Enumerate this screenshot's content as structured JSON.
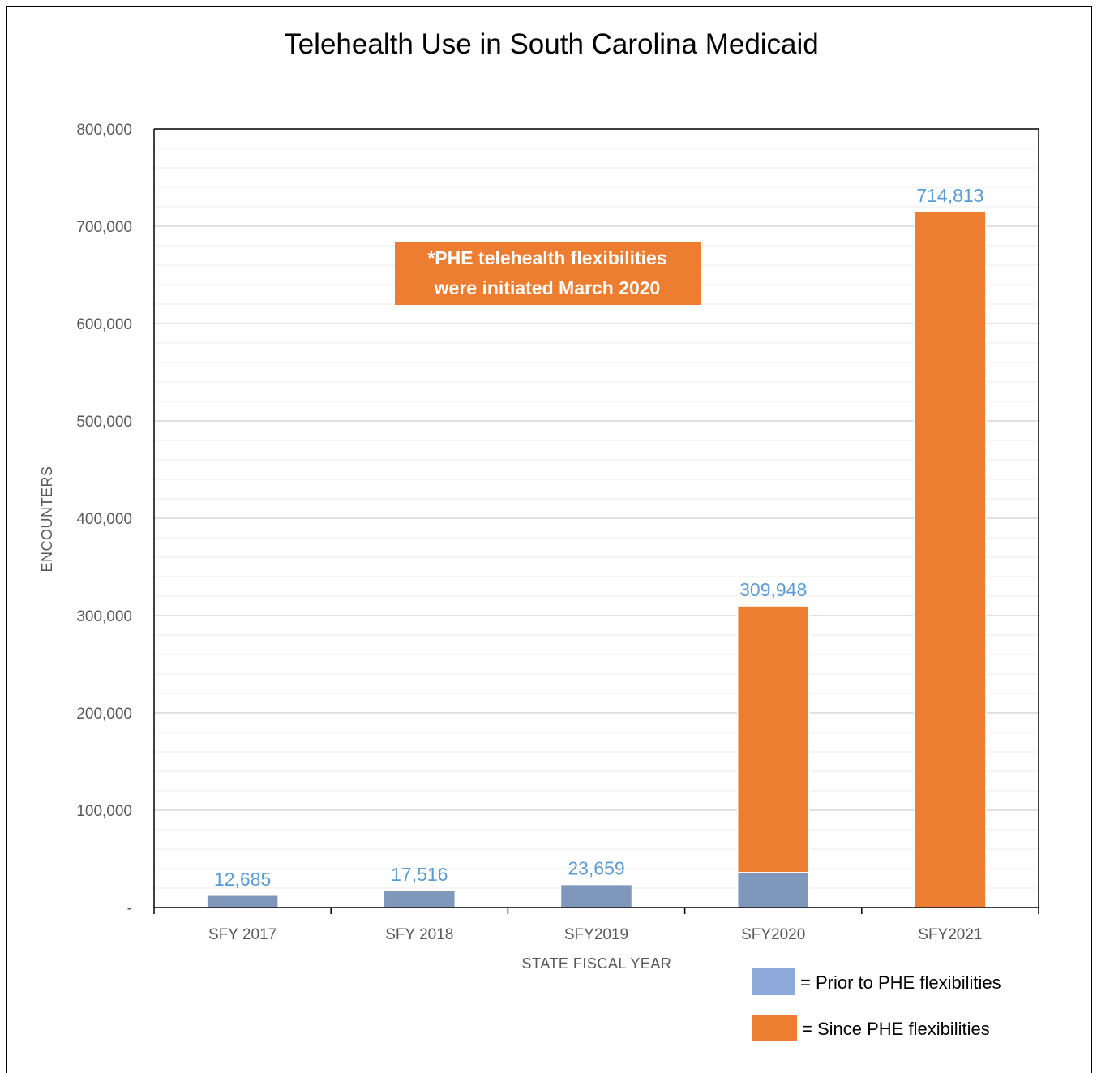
{
  "chart_data": {
    "type": "bar",
    "stacked": true,
    "title": "Telehealth Use in South Carolina Medicaid",
    "xlabel": "STATE FISCAL YEAR",
    "ylabel": "ENCOUNTERS",
    "ylim": [
      0,
      800000
    ],
    "yticks": [
      {
        "value": 0,
        "label": "-"
      },
      {
        "value": 100000,
        "label": "100,000"
      },
      {
        "value": 200000,
        "label": "200,000"
      },
      {
        "value": 300000,
        "label": "300,000"
      },
      {
        "value": 400000,
        "label": "400,000"
      },
      {
        "value": 500000,
        "label": "500,000"
      },
      {
        "value": 600000,
        "label": "600,000"
      },
      {
        "value": 700000,
        "label": "700,000"
      },
      {
        "value": 800000,
        "label": "800,000"
      }
    ],
    "minor_grid_step": 20000,
    "categories": [
      "SFY 2017",
      "SFY 2018",
      "SFY2019",
      "SFY2020",
      "SFY2021"
    ],
    "series": [
      {
        "key": "prior",
        "color": "#7f97bb",
        "values": [
          12685,
          17516,
          23659,
          36000,
          0
        ]
      },
      {
        "key": "since",
        "color": "#ed7d31",
        "values": [
          0,
          0,
          0,
          273948,
          714813
        ]
      }
    ],
    "totals": [
      12685,
      17516,
      23659,
      309948,
      714813
    ],
    "total_labels": [
      "12,685",
      "17,516",
      "23,659",
      "309,948",
      "714,813"
    ],
    "annotation": [
      "*PHE telehealth flexibilities",
      "were initiated March 2020"
    ],
    "annotation_color": "#ed7d31",
    "legend": [
      {
        "label": "= Prior to PHE flexibilities",
        "color": "#8eaadb"
      },
      {
        "label": "= Since PHE flexibilities",
        "color": "#ed7d31"
      }
    ],
    "grid": true
  }
}
